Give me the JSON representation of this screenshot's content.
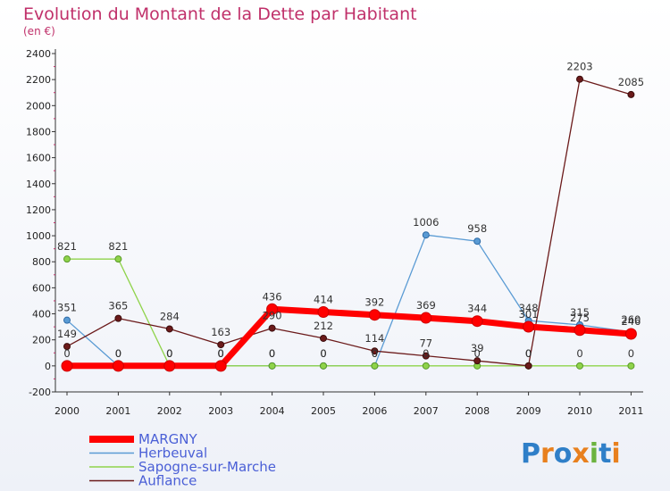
{
  "chart_data": {
    "type": "line",
    "title": "Evolution du Montant de la Dette par Habitant",
    "subtitle": "(en €)",
    "x": [
      "2000",
      "2001",
      "2002",
      "2003",
      "2004",
      "2005",
      "2006",
      "2007",
      "2008",
      "2009",
      "2010",
      "2011"
    ],
    "ylim": [
      -200,
      2400
    ],
    "yticks": [
      -200,
      0,
      200,
      400,
      600,
      800,
      1000,
      1200,
      1400,
      1600,
      1800,
      2000,
      2200,
      2400
    ],
    "grid": false,
    "legend_position": "bottom-left",
    "series": [
      {
        "name": "MARGNY",
        "color": "#ff0000",
        "values": [
          0,
          0,
          0,
          0,
          436,
          414,
          392,
          369,
          344,
          301,
          275,
          246
        ]
      },
      {
        "name": "Herbeuval",
        "color": "#5a9bd4",
        "values": [
          351,
          0,
          0,
          0,
          0,
          0,
          0,
          1006,
          958,
          348,
          315,
          260
        ]
      },
      {
        "name": "Sapogne-sur-Marche",
        "color": "#8fd34a",
        "values": [
          821,
          821,
          0,
          0,
          0,
          0,
          0,
          0,
          0,
          0,
          0,
          0
        ]
      },
      {
        "name": "Auflance",
        "color": "#6b1a1a",
        "values": [
          149,
          365,
          284,
          163,
          290,
          212,
          114,
          77,
          39,
          0,
          2203,
          2085
        ]
      }
    ],
    "point_labels": [
      [
        "0",
        "0",
        "0",
        "0",
        "436",
        "414",
        "392",
        "369",
        "344",
        "301",
        "275",
        "246"
      ],
      [
        "351",
        "0",
        "0",
        "0",
        "0",
        "0",
        "0",
        "1006",
        "958",
        "348",
        "315",
        "260"
      ],
      [
        "821",
        "821",
        "0",
        "0",
        "0",
        "0",
        "0",
        "0",
        "0",
        "0",
        "0",
        "0"
      ],
      [
        "149",
        "365",
        "284",
        "163",
        "290",
        "212",
        "114",
        "77",
        "39",
        "0",
        "2203",
        "2085"
      ]
    ]
  },
  "logo": {
    "text": "Proxiti",
    "letters": [
      "P",
      "r",
      "o",
      "x",
      "i",
      "t",
      "i"
    ],
    "colors": [
      "#2f7fc8",
      "#e8801e",
      "#2f7fc8",
      "#e8801e",
      "#6cb33f",
      "#2f7fc8",
      "#e8801e"
    ]
  }
}
